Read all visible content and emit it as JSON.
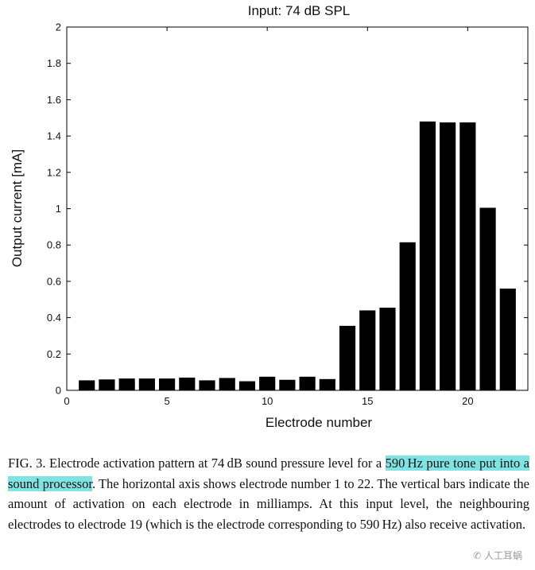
{
  "chart_data": {
    "type": "bar",
    "title": "Input: 74 dB SPL",
    "xlabel": "Electrode number",
    "ylabel": "Output current [mA]",
    "x": [
      1,
      2,
      3,
      4,
      5,
      6,
      7,
      8,
      9,
      10,
      11,
      12,
      13,
      14,
      15,
      16,
      17,
      18,
      19,
      20,
      21,
      22
    ],
    "values": [
      0.055,
      0.06,
      0.065,
      0.065,
      0.065,
      0.07,
      0.055,
      0.068,
      0.05,
      0.075,
      0.058,
      0.075,
      0.062,
      0.355,
      0.44,
      0.455,
      0.815,
      1.48,
      1.475,
      1.475,
      1.005,
      0.56
    ],
    "xlim": [
      0,
      23
    ],
    "ylim": [
      0,
      2
    ],
    "xticks": [
      0,
      5,
      10,
      15,
      20
    ],
    "yticks": [
      0,
      0.2,
      0.4,
      0.6,
      0.8,
      1,
      1.2,
      1.4,
      1.6,
      1.8,
      2
    ],
    "bar_color": "#000000",
    "grid": false,
    "legend": false
  },
  "caption": {
    "lead": "FIG. 3. Electrode activation pattern at 74 dB sound pressure level for a ",
    "highlight": "590 Hz pure tone put into a sound processor",
    "rest": ". The horizontal axis shows electrode number 1 to 22. The vertical bars indicate the amount of activation on each electrode in milliamps. At this input level, the neighbouring electrodes to electrode 19 (which is the electrode corresponding to 590 Hz) also receive activation.",
    "highlight_color": "#7fe3e3"
  },
  "watermark": "人工耳蜗"
}
